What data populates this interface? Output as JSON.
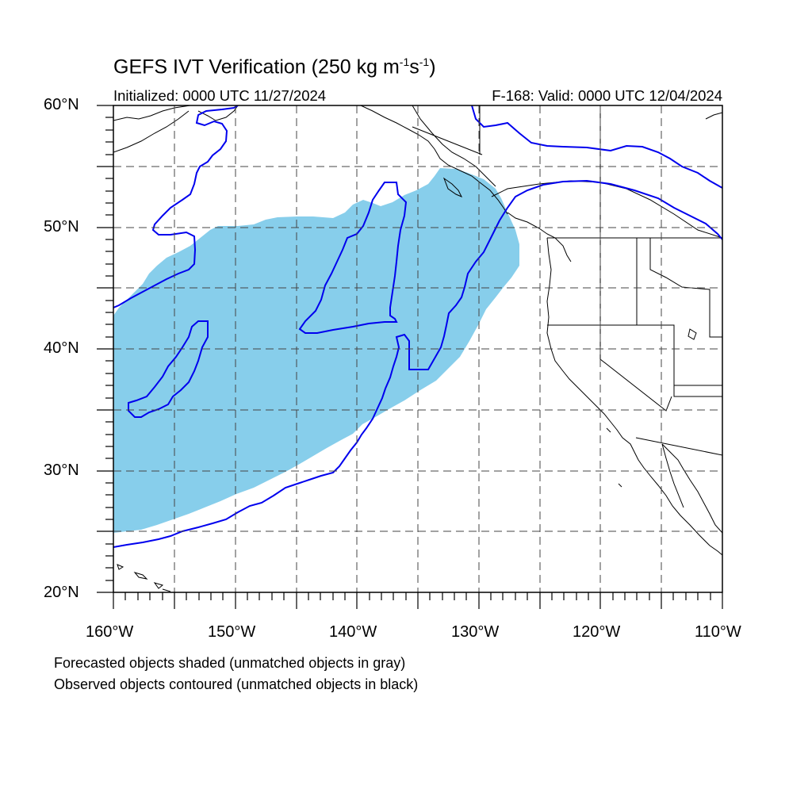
{
  "title": {
    "main": "GEFS IVT Verification (250 kg m",
    "sup1": "-1",
    "mid": "s",
    "sup2": "-1",
    "end": ")"
  },
  "initialized": "Initialized: 0000 UTC 11/27/2024",
  "valid": "F-168: Valid: 0000 UTC 12/04/2024",
  "footer": {
    "line1": "Forecasted objects shaded (unmatched objects in gray)",
    "line2": "Observed objects contoured (unmatched objects in black)"
  },
  "axes": {
    "lat_labels": [
      "60°N",
      "50°N",
      "40°N",
      "30°N",
      "20°N"
    ],
    "lon_labels": [
      "160°W",
      "150°W",
      "140°W",
      "130°W",
      "120°W",
      "110°W"
    ],
    "lat_range": [
      20,
      60
    ],
    "lon_range": [
      -160,
      -110
    ]
  },
  "colors": {
    "forecast_fill": "#87ceeb",
    "observed_contour": "#0000ee",
    "coastline": "#000000",
    "grid": "#555555"
  }
}
